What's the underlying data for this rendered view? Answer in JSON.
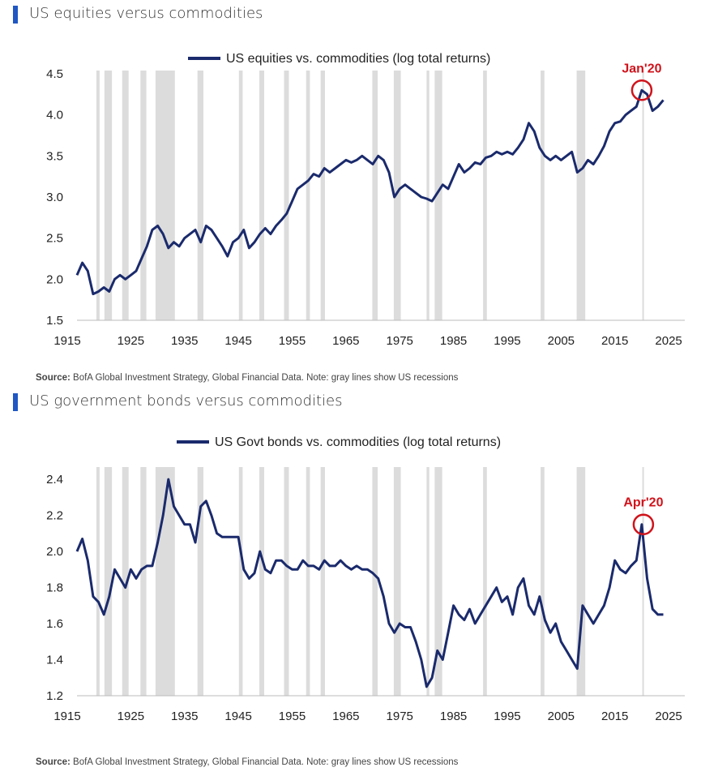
{
  "panels": [
    {
      "header": "US equities versus commodities",
      "source_label": "Source:",
      "source_text": "BofA Global Investment Strategy, Global Financial Data. Note: gray lines show US recessions"
    },
    {
      "header": "US government bonds versus commodities",
      "source_label": "Source:",
      "source_text": "BofA Global Investment Strategy, Global Financial Data. Note: gray lines show US recessions"
    }
  ],
  "colors": {
    "line": "#1a2a6c",
    "accent": "#d0131b",
    "recession": "#d6d6d6",
    "header_bar": "#1f57c3"
  },
  "chart_data": [
    {
      "type": "line",
      "title": "US equities vs. commodities (log total returns)",
      "legend": "US equities vs. commodities (log total returns)",
      "legend_position": "top-center",
      "xlim": [
        1915,
        2028
      ],
      "ylim": [
        1.5,
        4.5
      ],
      "yticks": [
        1.5,
        2.0,
        2.5,
        3.0,
        3.5,
        4.0,
        4.5
      ],
      "ytick_labels": [
        "1.5",
        "2.0",
        "2.5",
        "3.0",
        "3.5",
        "4.0",
        "4.5"
      ],
      "xticks": [
        1915,
        1925,
        1935,
        1945,
        1955,
        1965,
        1975,
        1985,
        1995,
        2005,
        2015,
        2025
      ],
      "xtick_labels": [
        "1915",
        "1925",
        "1935",
        "1945",
        "1955",
        "1965",
        "1975",
        "1985",
        "1995",
        "2005",
        "2015",
        "2025"
      ],
      "recessions": [
        [
          1918.6,
          1919.2
        ],
        [
          1920.1,
          1921.5
        ],
        [
          1923.4,
          1924.6
        ],
        [
          1926.8,
          1927.9
        ],
        [
          1929.6,
          1933.2
        ],
        [
          1937.4,
          1938.5
        ],
        [
          1945.1,
          1945.8
        ],
        [
          1948.9,
          1949.8
        ],
        [
          1953.5,
          1954.4
        ],
        [
          1957.6,
          1958.3
        ],
        [
          1960.3,
          1961.1
        ],
        [
          1969.9,
          1970.9
        ],
        [
          1973.9,
          1975.2
        ],
        [
          1980.0,
          1980.5
        ],
        [
          1981.5,
          1982.9
        ],
        [
          1990.5,
          1991.2
        ],
        [
          2001.2,
          2001.9
        ],
        [
          2007.9,
          2009.5
        ],
        [
          2020.1,
          2020.4
        ]
      ],
      "annotation": {
        "label": "Jan'20",
        "x": 2020.0,
        "y": 4.3
      },
      "series": [
        {
          "name": "US equities vs. commodities (log total returns)",
          "x": [
            1915,
            1916,
            1917,
            1918,
            1919,
            1920,
            1921,
            1922,
            1923,
            1924,
            1925,
            1926,
            1927,
            1928,
            1929,
            1930,
            1931,
            1932,
            1933,
            1934,
            1935,
            1936,
            1937,
            1938,
            1939,
            1940,
            1941,
            1942,
            1943,
            1944,
            1945,
            1946,
            1947,
            1948,
            1949,
            1950,
            1951,
            1952,
            1953,
            1954,
            1955,
            1956,
            1957,
            1958,
            1959,
            1960,
            1961,
            1962,
            1963,
            1964,
            1965,
            1966,
            1967,
            1968,
            1969,
            1970,
            1971,
            1972,
            1973,
            1974,
            1975,
            1976,
            1977,
            1978,
            1979,
            1980,
            1981,
            1982,
            1983,
            1984,
            1985,
            1986,
            1987,
            1988,
            1989,
            1990,
            1991,
            1992,
            1993,
            1994,
            1995,
            1996,
            1997,
            1998,
            1999,
            2000,
            2001,
            2002,
            2003,
            2004,
            2005,
            2006,
            2007,
            2008,
            2009,
            2010,
            2011,
            2012,
            2013,
            2014,
            2015,
            2016,
            2017,
            2018,
            2019,
            2020,
            2021,
            2022,
            2023,
            2024
          ],
          "values": [
            2.05,
            2.2,
            2.1,
            1.82,
            1.85,
            1.9,
            1.85,
            2.0,
            2.05,
            2.0,
            2.05,
            2.1,
            2.25,
            2.4,
            2.6,
            2.65,
            2.55,
            2.38,
            2.45,
            2.4,
            2.5,
            2.55,
            2.6,
            2.45,
            2.65,
            2.6,
            2.5,
            2.4,
            2.28,
            2.45,
            2.5,
            2.6,
            2.38,
            2.45,
            2.55,
            2.62,
            2.55,
            2.65,
            2.72,
            2.8,
            2.95,
            3.1,
            3.15,
            3.2,
            3.28,
            3.25,
            3.35,
            3.3,
            3.35,
            3.4,
            3.45,
            3.42,
            3.45,
            3.5,
            3.45,
            3.4,
            3.5,
            3.45,
            3.3,
            3.0,
            3.1,
            3.15,
            3.1,
            3.05,
            3.0,
            2.98,
            2.95,
            3.05,
            3.15,
            3.1,
            3.25,
            3.4,
            3.3,
            3.35,
            3.42,
            3.4,
            3.48,
            3.5,
            3.55,
            3.52,
            3.55,
            3.52,
            3.6,
            3.7,
            3.9,
            3.8,
            3.6,
            3.5,
            3.45,
            3.5,
            3.45,
            3.5,
            3.55,
            3.3,
            3.35,
            3.45,
            3.4,
            3.5,
            3.62,
            3.8,
            3.9,
            3.92,
            4.0,
            4.05,
            4.1,
            4.3,
            4.25,
            4.05,
            4.1,
            4.18
          ]
        }
      ]
    },
    {
      "type": "line",
      "title": "US Govt bonds vs. commodities (log total returns)",
      "legend": "US Govt bonds vs. commodities (log total returns)",
      "legend_position": "top-center",
      "xlim": [
        1915,
        2028
      ],
      "ylim": [
        1.2,
        2.45
      ],
      "yticks": [
        1.2,
        1.4,
        1.6,
        1.8,
        2.0,
        2.2,
        2.4
      ],
      "ytick_labels": [
        "1.2",
        "1.4",
        "1.6",
        "1.8",
        "2.0",
        "2.2",
        "2.4"
      ],
      "xticks": [
        1915,
        1925,
        1935,
        1945,
        1955,
        1965,
        1975,
        1985,
        1995,
        2005,
        2015,
        2025
      ],
      "xtick_labels": [
        "1915",
        "1925",
        "1935",
        "1945",
        "1955",
        "1965",
        "1975",
        "1985",
        "1995",
        "2005",
        "2015",
        "2025"
      ],
      "recessions": [
        [
          1918.6,
          1919.2
        ],
        [
          1920.1,
          1921.5
        ],
        [
          1923.4,
          1924.6
        ],
        [
          1926.8,
          1927.9
        ],
        [
          1929.6,
          1933.2
        ],
        [
          1937.4,
          1938.5
        ],
        [
          1945.1,
          1945.8
        ],
        [
          1948.9,
          1949.8
        ],
        [
          1953.5,
          1954.4
        ],
        [
          1957.6,
          1958.3
        ],
        [
          1960.3,
          1961.1
        ],
        [
          1969.9,
          1970.9
        ],
        [
          1973.9,
          1975.2
        ],
        [
          1980.0,
          1980.5
        ],
        [
          1981.5,
          1982.9
        ],
        [
          1990.5,
          1991.2
        ],
        [
          2001.2,
          2001.9
        ],
        [
          2007.9,
          2009.5
        ],
        [
          2020.1,
          2020.4
        ]
      ],
      "annotation": {
        "label": "Apr'20",
        "x": 2020.3,
        "y": 2.15
      },
      "series": [
        {
          "name": "US Govt bonds vs. commodities (log total returns)",
          "x": [
            1915,
            1916,
            1917,
            1918,
            1919,
            1920,
            1921,
            1922,
            1923,
            1924,
            1925,
            1926,
            1927,
            1928,
            1929,
            1930,
            1931,
            1932,
            1933,
            1934,
            1935,
            1936,
            1937,
            1938,
            1939,
            1940,
            1941,
            1942,
            1943,
            1944,
            1945,
            1946,
            1947,
            1948,
            1949,
            1950,
            1951,
            1952,
            1953,
            1954,
            1955,
            1956,
            1957,
            1958,
            1959,
            1960,
            1961,
            1962,
            1963,
            1964,
            1965,
            1966,
            1967,
            1968,
            1969,
            1970,
            1971,
            1972,
            1973,
            1974,
            1975,
            1976,
            1977,
            1978,
            1979,
            1980,
            1981,
            1982,
            1983,
            1984,
            1985,
            1986,
            1987,
            1988,
            1989,
            1990,
            1991,
            1992,
            1993,
            1994,
            1995,
            1996,
            1997,
            1998,
            1999,
            2000,
            2001,
            2002,
            2003,
            2004,
            2005,
            2006,
            2007,
            2008,
            2009,
            2010,
            2011,
            2012,
            2013,
            2014,
            2015,
            2016,
            2017,
            2018,
            2019,
            2020,
            2021,
            2022,
            2023,
            2024
          ],
          "values": [
            2.0,
            2.07,
            1.95,
            1.75,
            1.72,
            1.65,
            1.75,
            1.9,
            1.85,
            1.8,
            1.9,
            1.85,
            1.9,
            1.92,
            1.92,
            2.05,
            2.2,
            2.4,
            2.25,
            2.2,
            2.15,
            2.15,
            2.05,
            2.25,
            2.28,
            2.2,
            2.1,
            2.08,
            2.08,
            2.08,
            2.08,
            1.9,
            1.85,
            1.88,
            2.0,
            1.9,
            1.88,
            1.95,
            1.95,
            1.92,
            1.9,
            1.9,
            1.95,
            1.92,
            1.92,
            1.9,
            1.95,
            1.92,
            1.92,
            1.95,
            1.92,
            1.9,
            1.92,
            1.9,
            1.9,
            1.88,
            1.85,
            1.75,
            1.6,
            1.55,
            1.6,
            1.58,
            1.58,
            1.5,
            1.4,
            1.25,
            1.3,
            1.45,
            1.4,
            1.55,
            1.7,
            1.65,
            1.62,
            1.68,
            1.6,
            1.65,
            1.7,
            1.75,
            1.8,
            1.72,
            1.75,
            1.65,
            1.8,
            1.85,
            1.7,
            1.65,
            1.75,
            1.62,
            1.55,
            1.6,
            1.5,
            1.45,
            1.4,
            1.35,
            1.7,
            1.65,
            1.6,
            1.65,
            1.7,
            1.8,
            1.95,
            1.9,
            1.88,
            1.92,
            1.95,
            2.15,
            1.85,
            1.68,
            1.65,
            1.65
          ]
        }
      ]
    }
  ]
}
